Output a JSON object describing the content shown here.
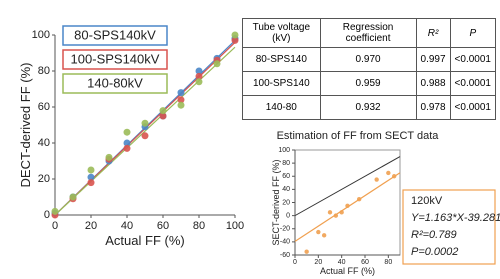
{
  "chart_data": [
    {
      "type": "scatter",
      "ylabel": "DECT-derived FF (%)",
      "xlabel": "Actual FF (%)",
      "xlim": [
        0,
        100
      ],
      "ylim": [
        0,
        100
      ],
      "xticks": [
        0,
        20,
        40,
        60,
        80,
        100
      ],
      "yticks": [
        0,
        20,
        40,
        60,
        80,
        100
      ],
      "x": [
        0,
        10,
        20,
        30,
        40,
        50,
        60,
        70,
        80,
        90,
        100
      ],
      "series": [
        {
          "name": "80-SPS140kV",
          "color": "#4a86c8",
          "values": [
            1,
            10,
            21,
            30,
            40,
            49,
            55,
            68,
            80,
            87,
            98
          ]
        },
        {
          "name": "100-SPS140kV",
          "color": "#d9534f",
          "values": [
            0,
            9,
            18,
            31,
            37,
            44,
            55,
            64,
            77,
            86,
            97
          ]
        },
        {
          "name": "140-80kV",
          "color": "#9bbb59",
          "values": [
            2,
            10,
            25,
            32,
            46,
            51,
            58,
            61,
            74,
            84,
            100
          ]
        }
      ]
    },
    {
      "type": "scatter",
      "title": "Estimation of FF from SECT data",
      "ylabel": "SECT-derived FF (%)",
      "xlabel": "Actual FF (%)",
      "xlim": [
        0,
        90
      ],
      "ylim": [
        -60,
        100
      ],
      "xticks": [
        0,
        20,
        40,
        60,
        80
      ],
      "yticks": [
        -60,
        -40,
        -20,
        0,
        20,
        40,
        60,
        80,
        100
      ],
      "x": [
        10,
        20,
        25,
        30,
        35,
        40,
        45,
        55,
        70,
        80,
        85
      ],
      "series": [
        {
          "name": "120kV",
          "color": "#f0a050",
          "values": [
            -55,
            -25,
            -30,
            5,
            0,
            5,
            15,
            25,
            55,
            65,
            60
          ]
        }
      ],
      "annotation": [
        "120kV",
        "Y=1.163*X-39.281",
        "R²=0.789",
        "P=0.0002"
      ]
    }
  ],
  "table": {
    "header": [
      "Tube voltage (kV)",
      "Regression coefficient",
      "R²",
      "P"
    ],
    "rows": [
      [
        "80-SPS140",
        "0.970",
        "0.997",
        "<0.0001"
      ],
      [
        "100-SPS140",
        "0.959",
        "0.988",
        "<0.0001"
      ],
      [
        "140-80",
        "0.932",
        "0.978",
        "<0.0001"
      ]
    ]
  }
}
